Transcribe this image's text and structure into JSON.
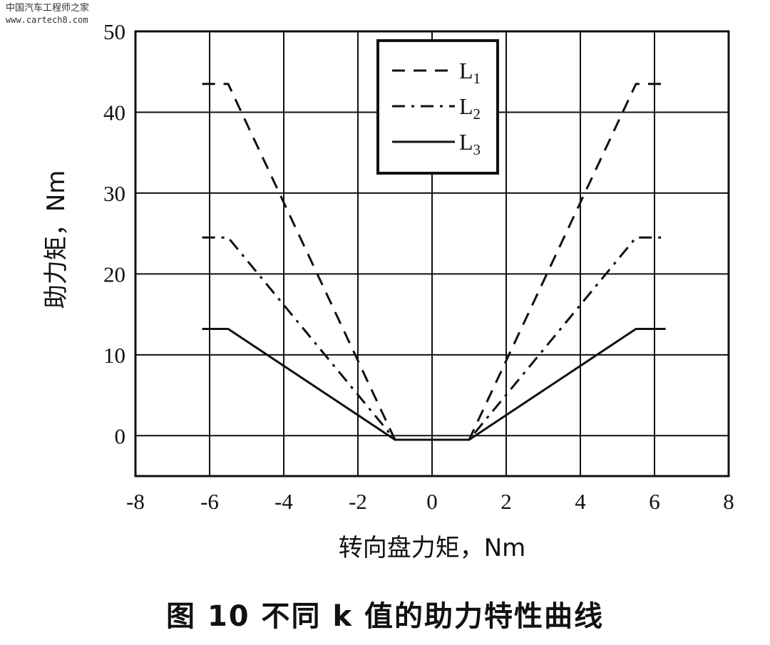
{
  "watermark": {
    "line1": "中国汽车工程师之家",
    "line2": "www.cartech8.com"
  },
  "caption": "图 10   不同 k 值的助力特性曲线",
  "chart_data": {
    "type": "line",
    "title": "",
    "xlabel": "转向盘力矩，Nm",
    "ylabel": "助力矩，Nm",
    "xlim": [
      -8,
      8
    ],
    "ylim": [
      -5,
      50
    ],
    "xticks": [
      -8,
      -6,
      -4,
      -2,
      0,
      2,
      4,
      6,
      8
    ],
    "xtick_labels": [
      "-8",
      "-6",
      "-4",
      "-2",
      "0",
      "2",
      "4",
      "6",
      "8"
    ],
    "yticks": [
      0,
      10,
      20,
      30,
      40,
      50
    ],
    "ytick_labels": [
      "0",
      "10",
      "20",
      "30",
      "40",
      "50"
    ],
    "grid": true,
    "legend_position": "top-right",
    "series": [
      {
        "name": "L1",
        "style": "dashed",
        "x": [
          -6.2,
          -5.5,
          -1.0,
          1.0,
          5.5,
          6.3
        ],
        "y": [
          43.5,
          43.5,
          -0.5,
          -0.5,
          43.5,
          43.5
        ]
      },
      {
        "name": "L2",
        "style": "dashdot",
        "x": [
          -6.2,
          -5.5,
          -1.0,
          1.0,
          5.5,
          6.3
        ],
        "y": [
          24.5,
          24.5,
          -0.5,
          -0.5,
          24.5,
          24.5
        ]
      },
      {
        "name": "L3",
        "style": "solid",
        "x": [
          -6.2,
          -5.5,
          -1.0,
          1.0,
          5.5,
          6.3
        ],
        "y": [
          13.2,
          13.2,
          -0.5,
          -0.5,
          13.2,
          13.2
        ]
      }
    ]
  }
}
